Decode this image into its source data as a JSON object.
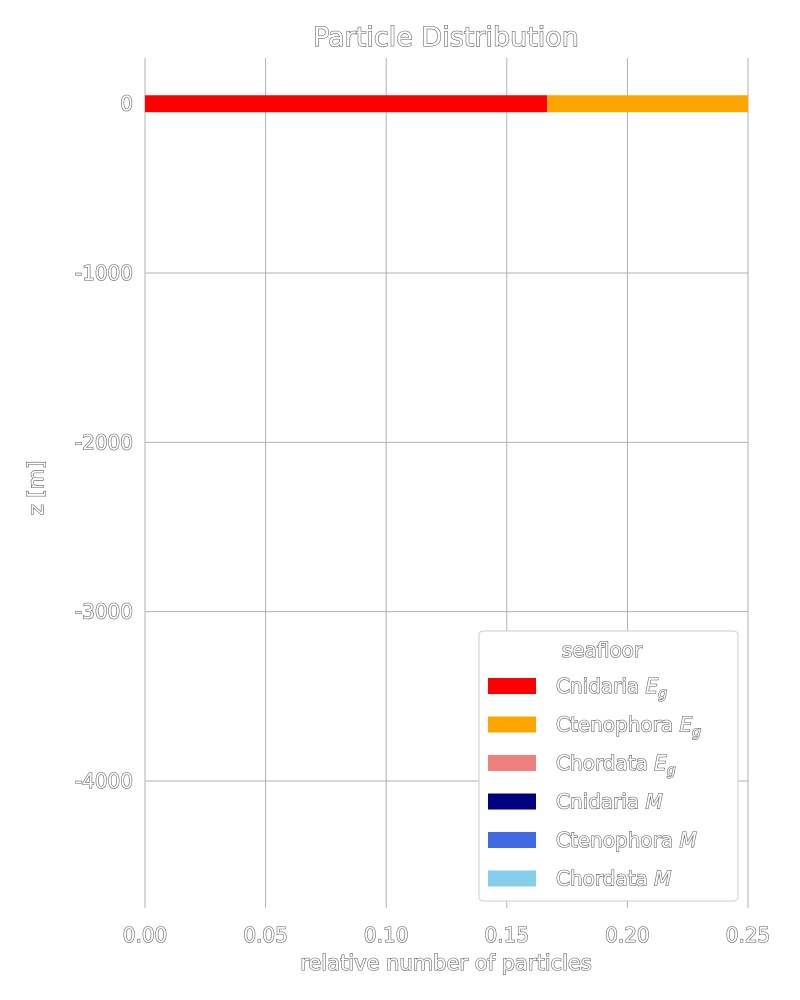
{
  "chart_data": {
    "type": "bar",
    "orientation": "horizontal",
    "stacked": true,
    "title": "Particle Distribution",
    "xlabel": "relative number of particles",
    "ylabel": "z [m]",
    "xlim": [
      0.0,
      0.25
    ],
    "ylim": [
      -4750,
      270
    ],
    "xticks": [
      "0.00",
      "0.05",
      "0.10",
      "0.15",
      "0.20",
      "0.25"
    ],
    "yticks": [
      0,
      -1000,
      -2000,
      -3000,
      -4000
    ],
    "ytick_labels": [
      "0",
      "-1000",
      "-2000",
      "-3000",
      "-4000"
    ],
    "grid": true,
    "bar_depth": 0,
    "bar_thickness": 100,
    "series": [
      {
        "name": "Cnidaria E_g",
        "color": "#ff0000",
        "value": 0.1667
      },
      {
        "name": "Ctenophora E_g",
        "color": "#ffa500",
        "value": 0.0833
      },
      {
        "name": "Chordata E_g",
        "color": "#f08080",
        "value": 0
      },
      {
        "name": "Cnidaria M",
        "color": "#000080",
        "value": 0
      },
      {
        "name": "Ctenophora M",
        "color": "#4169e1",
        "value": 0
      },
      {
        "name": "Chordata M",
        "color": "#87ceeb",
        "value": 0
      }
    ],
    "legend": {
      "title": "seafloor",
      "placement": "lower-right",
      "entries": [
        {
          "text": "Cnidaria ",
          "sub": "E",
          "subscript": "g"
        },
        {
          "text": "Ctenophora ",
          "sub": "E",
          "subscript": "g"
        },
        {
          "text": "Chordata ",
          "sub": "E",
          "subscript": "g"
        },
        {
          "text": "Cnidaria ",
          "sub": "M",
          "subscript": ""
        },
        {
          "text": "Ctenophora ",
          "sub": "M",
          "subscript": ""
        },
        {
          "text": "Chordata ",
          "sub": "M",
          "subscript": ""
        }
      ]
    }
  }
}
